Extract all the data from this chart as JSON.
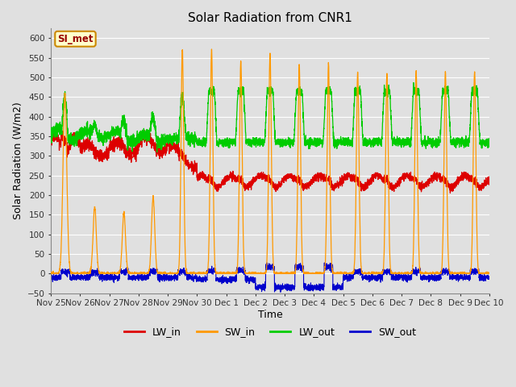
{
  "title": "Solar Radiation from CNR1",
  "xlabel": "Time",
  "ylabel": "Solar Radiation (W/m2)",
  "ylim": [
    -50,
    625
  ],
  "yticks": [
    -50,
    0,
    50,
    100,
    150,
    200,
    250,
    300,
    350,
    400,
    450,
    500,
    550,
    600
  ],
  "annotation_text": "SI_met",
  "annotation_bg": "#ffffcc",
  "annotation_border": "#cc8800",
  "annotation_text_color": "#990000",
  "bg_color": "#e0e0e0",
  "grid_color": "#ffffff",
  "line_colors": {
    "LW_in": "#dd0000",
    "SW_in": "#ff9900",
    "LW_out": "#00cc00",
    "SW_out": "#0000cc"
  },
  "xticklabels": [
    "Nov 25",
    "Nov 26",
    "Nov 27",
    "Nov 28",
    "Nov 29",
    "Nov 30",
    "Dec 1",
    "Dec 2",
    "Dec 3",
    "Dec 4",
    "Dec 5",
    "Dec 6",
    "Dec 7",
    "Dec 8",
    "Dec 9",
    "Dec 10"
  ],
  "figsize": [
    6.4,
    4.8
  ],
  "dpi": 100
}
